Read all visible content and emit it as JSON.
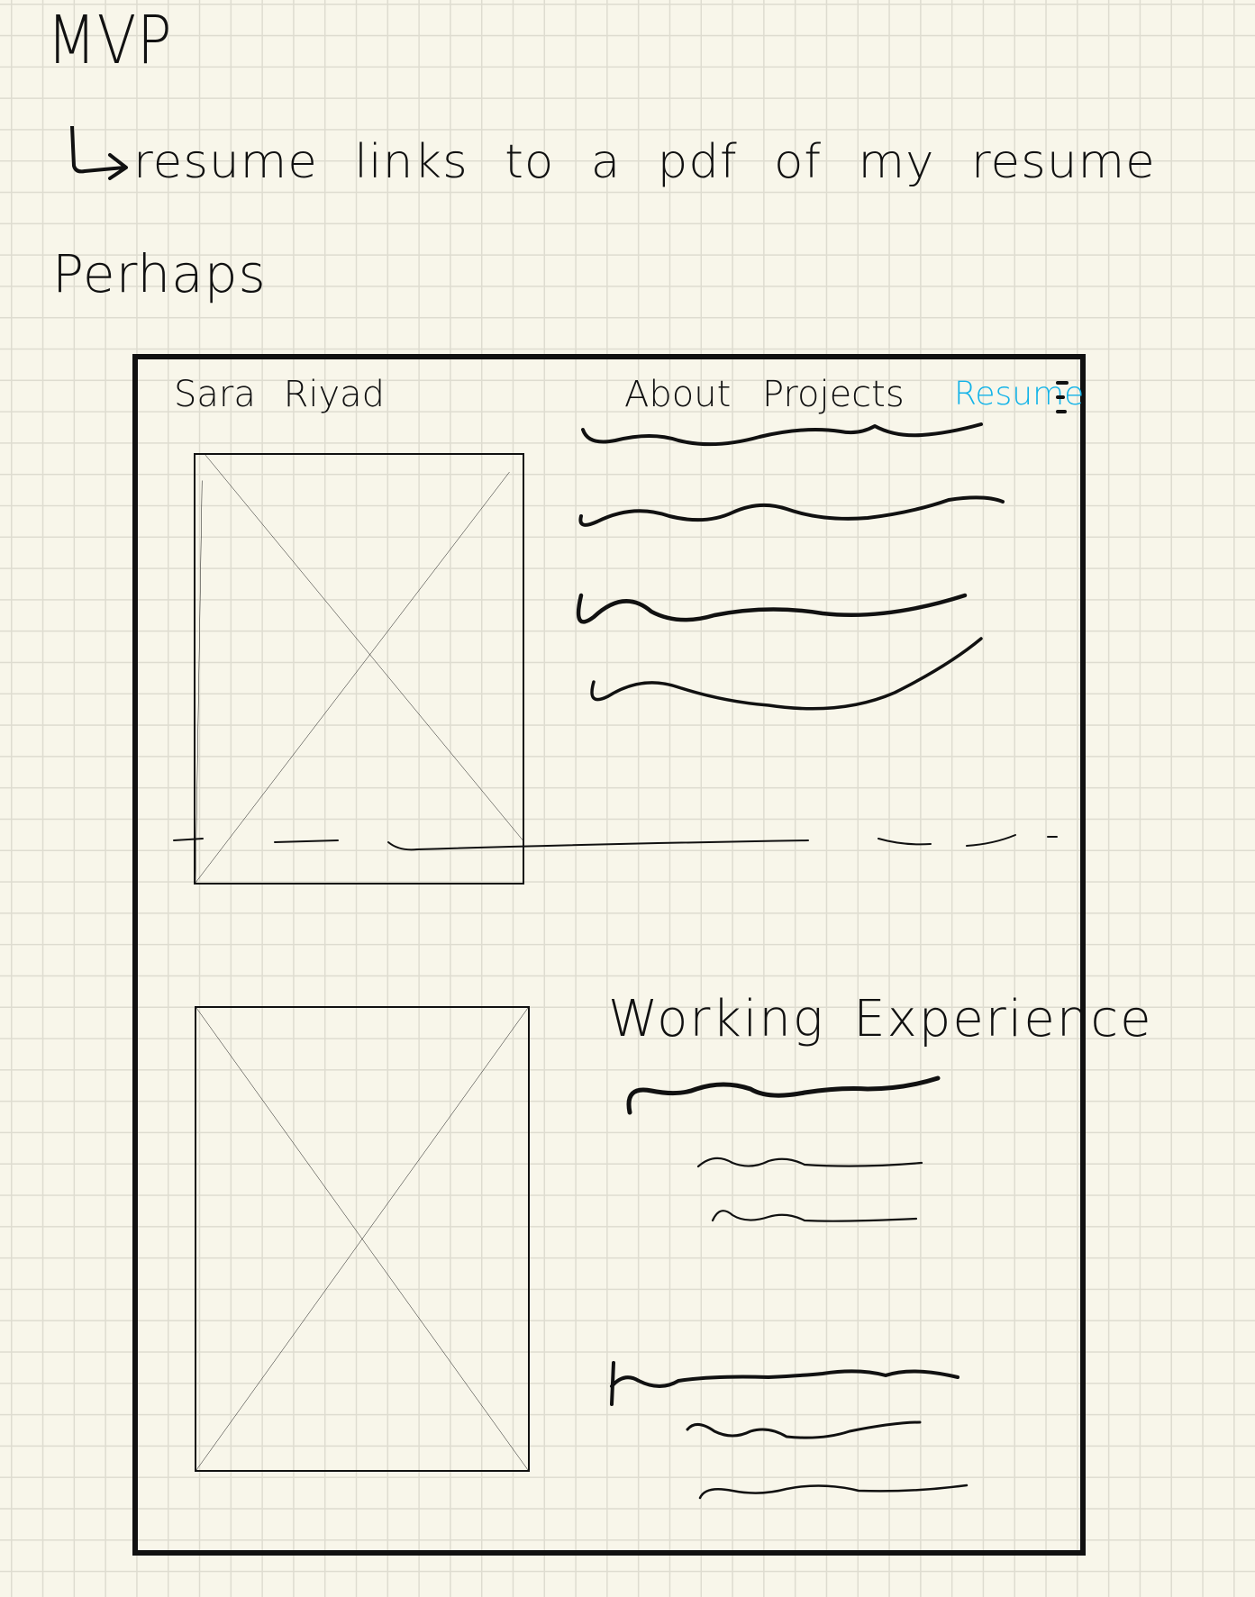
{
  "notes": {
    "title": "MVP",
    "arrow_icon": "return-arrow-icon",
    "note": "resume links to a pdf of my resume",
    "perhaps": "Perhaps"
  },
  "wireframe": {
    "header": {
      "brand": "Sara Riyad",
      "nav": {
        "about": "About",
        "projects": "Projects",
        "resume": "Resume"
      },
      "menu_icon": "hamburger-menu-icon"
    },
    "sections": {
      "experience_heading": "Working Experience"
    },
    "image_placeholder_icon": "image-placeholder-icon"
  },
  "colors": {
    "paper": "#f8f6ea",
    "grid": "#dedcd0",
    "ink": "#111111",
    "link_highlight": "#13b3e8"
  }
}
